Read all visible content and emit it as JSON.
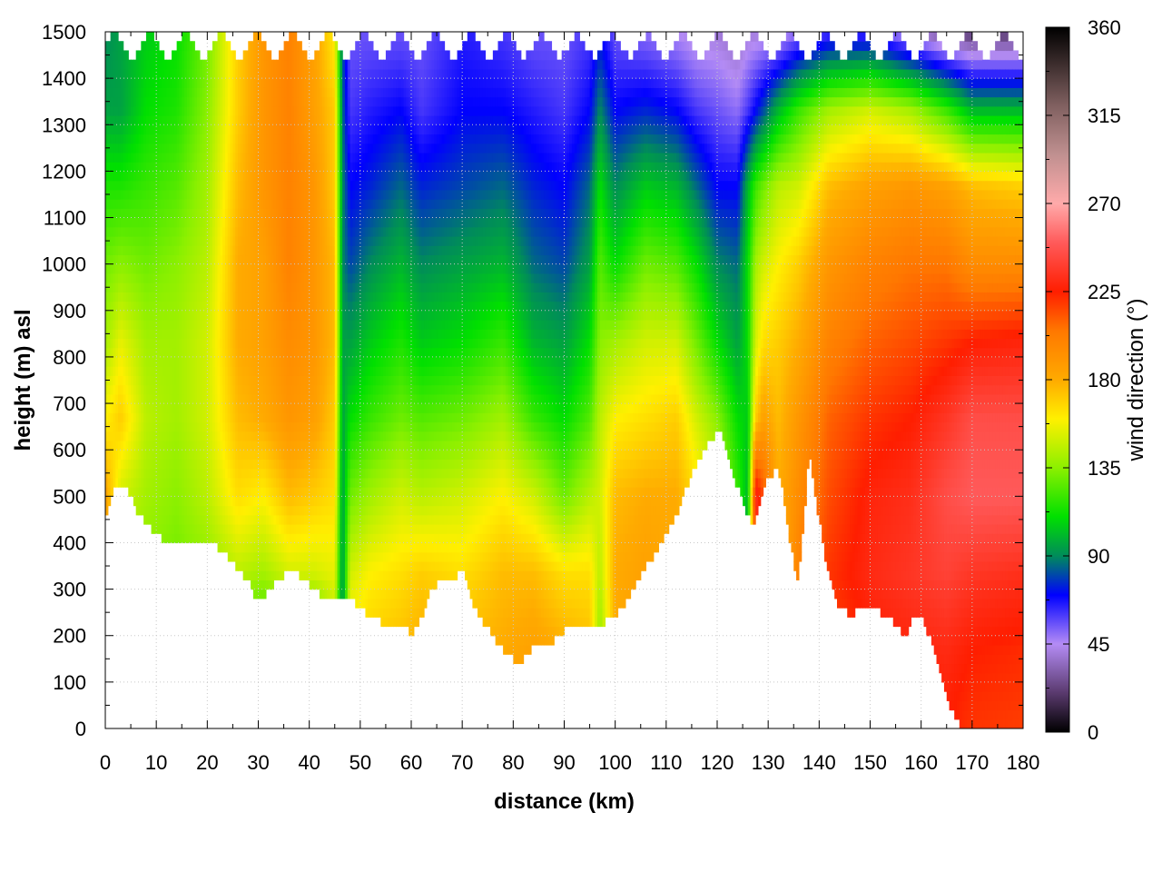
{
  "chart_data": {
    "type": "heatmap",
    "xlabel": "distance (km)",
    "ylabel": "height (m) asl",
    "colorbar_label": "wind direction (°)",
    "xlim": [
      0,
      180
    ],
    "ylim": [
      0,
      1500
    ],
    "zlim": [
      0,
      360
    ],
    "x_ticks": [
      "0",
      "10",
      "20",
      "30",
      "40",
      "50",
      "60",
      "70",
      "80",
      "90",
      "100",
      "110",
      "120",
      "130",
      "140",
      "150",
      "160",
      "170",
      "180"
    ],
    "y_ticks": [
      "0",
      "100",
      "200",
      "300",
      "400",
      "500",
      "600",
      "700",
      "800",
      "900",
      "1000",
      "1100",
      "1200",
      "1300",
      "1400",
      "1500"
    ],
    "colorbar_ticks": [
      "0",
      "45",
      "90",
      "135",
      "180",
      "225",
      "270",
      "315",
      "360"
    ],
    "grid": true,
    "colormap": [
      {
        "v": 0,
        "c": "#000000"
      },
      {
        "v": 20,
        "c": "#5a3a6e"
      },
      {
        "v": 45,
        "c": "#b48cf5"
      },
      {
        "v": 70,
        "c": "#0000ff"
      },
      {
        "v": 90,
        "c": "#008c5a"
      },
      {
        "v": 110,
        "c": "#00e000"
      },
      {
        "v": 135,
        "c": "#8cf000"
      },
      {
        "v": 160,
        "c": "#fff000"
      },
      {
        "v": 180,
        "c": "#ffaa00"
      },
      {
        "v": 205,
        "c": "#ff7800"
      },
      {
        "v": 225,
        "c": "#ff1e00"
      },
      {
        "v": 250,
        "c": "#ff5a5a"
      },
      {
        "v": 270,
        "c": "#ffaaaa"
      },
      {
        "v": 295,
        "c": "#c09090"
      },
      {
        "v": 320,
        "c": "#806060"
      },
      {
        "v": 360,
        "c": "#000000"
      }
    ],
    "terrain": {
      "x": [
        0,
        1,
        2,
        4,
        6,
        8,
        10,
        12,
        14,
        16,
        18,
        20,
        22,
        24,
        26,
        28,
        29,
        30,
        32,
        34,
        36,
        38,
        40,
        42,
        44,
        46,
        48,
        50,
        52,
        54,
        56,
        58,
        60,
        62,
        64,
        66,
        67,
        68,
        70,
        72,
        74,
        76,
        78,
        80,
        82,
        84,
        86,
        88,
        90,
        92,
        94,
        96,
        98,
        100,
        102,
        104,
        106,
        108,
        110,
        112,
        114,
        116,
        118,
        120,
        121,
        122,
        124,
        126,
        127,
        128,
        130,
        132,
        133,
        134,
        135,
        136,
        137,
        138,
        140,
        142,
        144,
        146,
        148,
        150,
        152,
        154,
        156,
        157,
        158,
        160,
        162,
        164,
        166,
        168,
        170,
        175,
        180
      ],
      "y": [
        460,
        500,
        530,
        530,
        470,
        440,
        420,
        400,
        410,
        405,
        405,
        400,
        390,
        370,
        340,
        320,
        290,
        270,
        300,
        320,
        340,
        330,
        310,
        290,
        280,
        290,
        280,
        260,
        240,
        230,
        230,
        220,
        205,
        240,
        300,
        320,
        330,
        320,
        340,
        270,
        230,
        200,
        170,
        150,
        150,
        180,
        170,
        190,
        210,
        220,
        225,
        225,
        230,
        240,
        270,
        310,
        350,
        380,
        420,
        460,
        520,
        570,
        610,
        640,
        630,
        580,
        520,
        460,
        440,
        480,
        540,
        560,
        500,
        420,
        360,
        320,
        450,
        600,
        450,
        320,
        260,
        245,
        255,
        260,
        250,
        240,
        210,
        200,
        230,
        240,
        190,
        100,
        40,
        0,
        0,
        0,
        0
      ]
    },
    "column_profiles": [
      {
        "x": 0,
        "v": [
          120,
          135,
          180,
          185,
          160,
          140,
          130,
          115,
          95,
          90
        ]
      },
      {
        "x": 3,
        "v": [
          125,
          130,
          140,
          150,
          170,
          155,
          135,
          115,
          95,
          95
        ]
      },
      {
        "x": 8,
        "v": [
          115,
          125,
          135,
          140,
          145,
          140,
          130,
          120,
          110,
          105
        ]
      },
      {
        "x": 14,
        "v": [
          110,
          120,
          130,
          135,
          140,
          140,
          135,
          125,
          115,
          110
        ]
      },
      {
        "x": 20,
        "v": [
          115,
          125,
          135,
          145,
          150,
          150,
          145,
          140,
          135,
          130
        ]
      },
      {
        "x": 26,
        "v": [
          90,
          115,
          145,
          165,
          175,
          180,
          180,
          175,
          170,
          170
        ]
      },
      {
        "x": 31,
        "v": [
          60,
          105,
          140,
          160,
          180,
          185,
          185,
          190,
          190,
          190
        ]
      },
      {
        "x": 36,
        "v": [
          70,
          110,
          150,
          175,
          190,
          195,
          200,
          200,
          200,
          200
        ]
      },
      {
        "x": 41,
        "v": [
          60,
          105,
          150,
          170,
          185,
          190,
          190,
          190,
          185,
          185
        ]
      },
      {
        "x": 45,
        "v": [
          120,
          140,
          155,
          165,
          170,
          175,
          175,
          170,
          170,
          160
        ]
      },
      {
        "x": 46.5,
        "v": [
          80,
          85,
          90,
          92,
          95,
          95,
          90,
          90,
          85,
          80
        ]
      },
      {
        "x": 48,
        "v": [
          170,
          165,
          150,
          130,
          110,
          95,
          80,
          70,
          60,
          55
        ]
      },
      {
        "x": 52,
        "v": [
          175,
          170,
          160,
          140,
          120,
          105,
          90,
          75,
          65,
          55
        ]
      },
      {
        "x": 58,
        "v": [
          180,
          175,
          165,
          150,
          130,
          115,
          100,
          85,
          70,
          55
        ]
      },
      {
        "x": 62,
        "v": [
          185,
          180,
          170,
          145,
          125,
          105,
          90,
          75,
          60,
          55
        ]
      },
      {
        "x": 70,
        "v": [
          180,
          175,
          165,
          150,
          130,
          110,
          95,
          80,
          70,
          65
        ]
      },
      {
        "x": 78,
        "v": [
          185,
          180,
          175,
          160,
          140,
          120,
          100,
          85,
          70,
          60
        ]
      },
      {
        "x": 84,
        "v": [
          190,
          185,
          175,
          150,
          120,
          100,
          85,
          75,
          65,
          55
        ]
      },
      {
        "x": 90,
        "v": [
          185,
          180,
          165,
          130,
          110,
          95,
          80,
          70,
          60,
          55
        ]
      },
      {
        "x": 95,
        "v": [
          180,
          175,
          165,
          145,
          125,
          110,
          95,
          85,
          70,
          60
        ]
      },
      {
        "x": 97,
        "v": [
          120,
          135,
          145,
          150,
          145,
          135,
          125,
          110,
          90,
          70
        ]
      },
      {
        "x": 100,
        "v": [
          175,
          180,
          180,
          175,
          160,
          140,
          110,
          90,
          70,
          55
        ]
      },
      {
        "x": 106,
        "v": [
          180,
          185,
          185,
          180,
          165,
          150,
          130,
          105,
          75,
          50
        ]
      },
      {
        "x": 112,
        "v": [
          170,
          175,
          180,
          180,
          170,
          150,
          125,
          100,
          70,
          45
        ]
      },
      {
        "x": 116,
        "v": [
          140,
          150,
          160,
          165,
          150,
          130,
          110,
          85,
          60,
          40
        ]
      },
      {
        "x": 120,
        "v": [
          125,
          130,
          140,
          150,
          135,
          110,
          90,
          70,
          55,
          40
        ]
      },
      {
        "x": 124,
        "v": [
          90,
          100,
          110,
          120,
          110,
          95,
          85,
          70,
          50,
          35
        ]
      },
      {
        "x": 126,
        "v": [
          75,
          80,
          90,
          100,
          105,
          110,
          110,
          100,
          60,
          40
        ]
      },
      {
        "x": 127.5,
        "v": [
          120,
          150,
          225,
          235,
          170,
          150,
          140,
          120,
          70,
          40
        ]
      },
      {
        "x": 129,
        "v": [
          165,
          175,
          200,
          215,
          185,
          165,
          150,
          130,
          80,
          40
        ]
      },
      {
        "x": 132,
        "v": [
          165,
          170,
          175,
          180,
          175,
          170,
          160,
          145,
          100,
          40
        ]
      },
      {
        "x": 136,
        "v": [
          190,
          195,
          200,
          195,
          190,
          180,
          170,
          150,
          120,
          50
        ]
      },
      {
        "x": 142,
        "v": [
          210,
          215,
          220,
          215,
          210,
          200,
          190,
          175,
          140,
          60
        ]
      },
      {
        "x": 150,
        "v": [
          220,
          225,
          230,
          228,
          220,
          210,
          200,
          185,
          150,
          60
        ]
      },
      {
        "x": 158,
        "v": [
          222,
          228,
          235,
          232,
          225,
          215,
          205,
          190,
          140,
          40
        ]
      },
      {
        "x": 165,
        "v": [
          225,
          230,
          240,
          245,
          235,
          220,
          205,
          185,
          120,
          25
        ]
      },
      {
        "x": 170,
        "v": [
          220,
          225,
          235,
          250,
          245,
          225,
          195,
          175,
          100,
          20
        ]
      },
      {
        "x": 180,
        "v": [
          218,
          222,
          232,
          250,
          245,
          228,
          195,
          170,
          100,
          20
        ]
      }
    ]
  }
}
